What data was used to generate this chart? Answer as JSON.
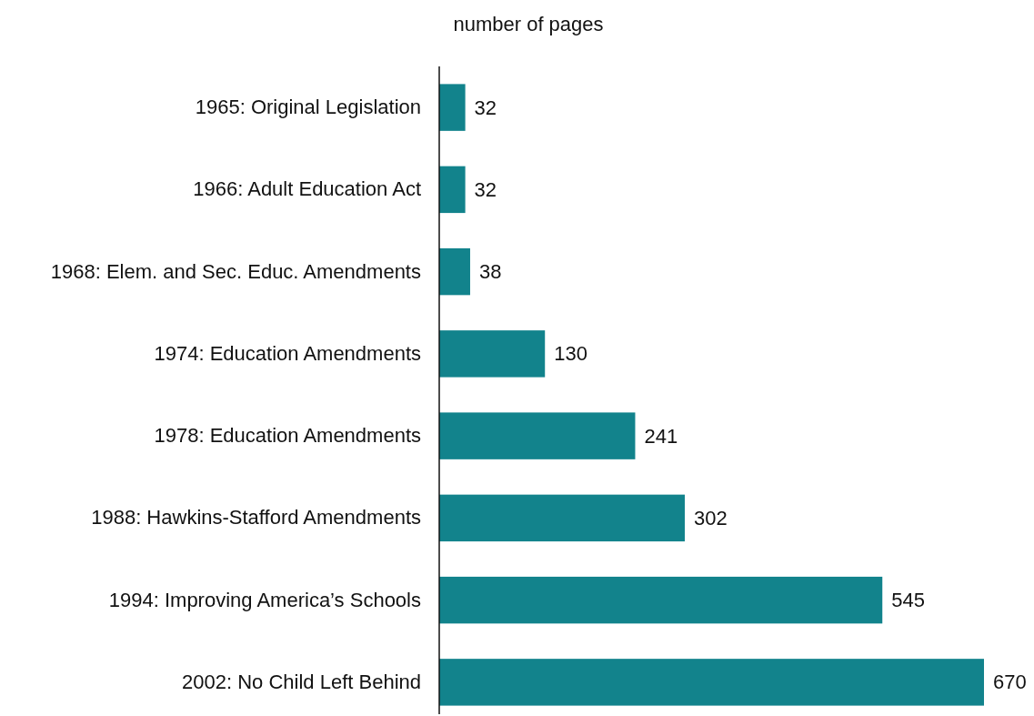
{
  "chart_data": {
    "type": "bar",
    "orientation": "horizontal",
    "xlabel": "number of pages",
    "categories": [
      "1965: Original Legislation",
      "1966: Adult Education Act",
      "1968: Elem. and Sec. Educ. Amendments",
      "1974: Education Amendments",
      "1978: Education Amendments",
      "1988: Hawkins-Stafford Amendments",
      "1994: Improving America’s Schools",
      "2002: No Child Left Behind"
    ],
    "values": [
      32,
      32,
      38,
      130,
      241,
      302,
      545,
      670
    ],
    "color": "#12838c",
    "data_labels": true
  }
}
